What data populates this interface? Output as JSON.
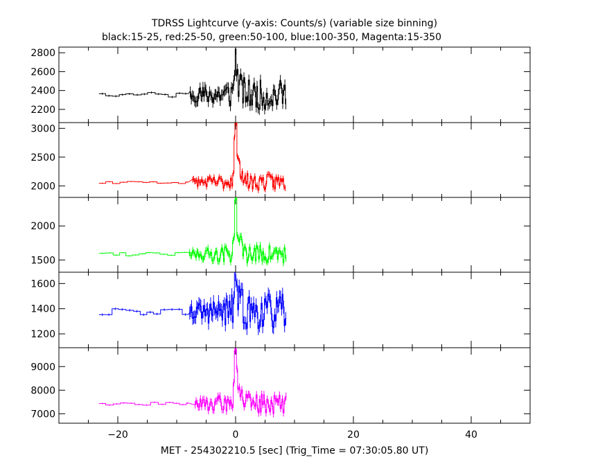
{
  "chart_data": {
    "type": "line",
    "title": "TDRSS Lightcurve (y-axis: Counts/s) (variable size binning)",
    "subtitle": "black:15-25, red:25-50, green:50-100, blue:100-350, Magenta:15-350",
    "xlabel": "MET - 254302210.5 [sec] (Trig_Time = 07:30:05.80 UT)",
    "xlim": [
      -30,
      50
    ],
    "x_ticks": [
      -20,
      0,
      20,
      40
    ],
    "x_tick_labels": [
      "−20",
      "0",
      "20",
      "40"
    ],
    "grid": false,
    "panels": [
      {
        "series": "15-25",
        "color": "#000000",
        "ylim": [
          2060,
          2860
        ],
        "y_ticks": [
          2200,
          2400,
          2600,
          2800
        ],
        "y_tick_labels": [
          "2200",
          "2400",
          "2600",
          "2800"
        ],
        "base": 2355,
        "noise": 105,
        "peak": 360,
        "seed": 11
      },
      {
        "series": "25-50",
        "color": "#ff0000",
        "ylim": [
          1800,
          3100
        ],
        "y_ticks": [
          2000,
          2500,
          3000
        ],
        "y_tick_labels": [
          "2000",
          "2500",
          "3000"
        ],
        "base": 2065,
        "noise": 95,
        "peak": 1050,
        "seed": 23
      },
      {
        "series": "50-100",
        "color": "#00ff00",
        "ylim": [
          1320,
          2420
        ],
        "y_ticks": [
          1500,
          2000
        ],
        "y_tick_labels": [
          "1500",
          "2000"
        ],
        "base": 1585,
        "noise": 95,
        "peak": 780,
        "seed": 37
      },
      {
        "series": "100-350",
        "color": "#0000ff",
        "ylim": [
          1090,
          1690
        ],
        "y_ticks": [
          1200,
          1400,
          1600
        ],
        "y_tick_labels": [
          "1200",
          "1400",
          "1600"
        ],
        "base": 1375,
        "noise": 95,
        "peak": 300,
        "seed": 53
      },
      {
        "series": "15-350",
        "color": "#ff00ff",
        "ylim": [
          6600,
          9800
        ],
        "y_ticks": [
          7000,
          8000,
          9000
        ],
        "y_tick_labels": [
          "7000",
          "8000",
          "9000"
        ],
        "base": 7420,
        "noise": 290,
        "peak": 2350,
        "seed": 71
      }
    ],
    "data_x_range": [
      -23.2,
      8.5
    ],
    "trigger_time": 0
  }
}
